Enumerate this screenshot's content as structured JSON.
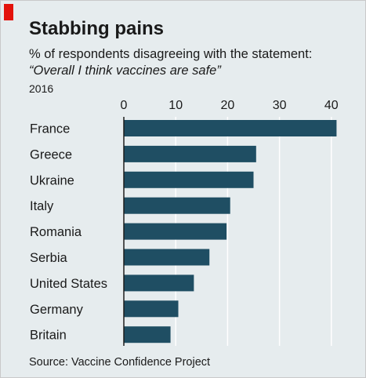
{
  "chart_data": {
    "type": "bar",
    "orientation": "horizontal",
    "title": "Stabbing pains",
    "subtitle": "% of respondents disagreeing with the statement:",
    "subtitle_quote": "“Overall I think vaccines are safe”",
    "note": "2016",
    "source": "Source: Vaccine Confidence Project",
    "categories": [
      "France",
      "Greece",
      "Ukraine",
      "Italy",
      "Romania",
      "Serbia",
      "United States",
      "Germany",
      "Britain"
    ],
    "values": [
      41.0,
      25.5,
      25.0,
      20.5,
      19.8,
      16.5,
      13.5,
      10.5,
      9.0
    ],
    "xticks": [
      0,
      10,
      20,
      30,
      40
    ],
    "xlim": [
      0,
      42
    ],
    "grid": true,
    "colors": {
      "bar": "#1f4e63",
      "background": "#e6ecee",
      "grid": "#ffffff",
      "accent": "#e3120b"
    }
  }
}
